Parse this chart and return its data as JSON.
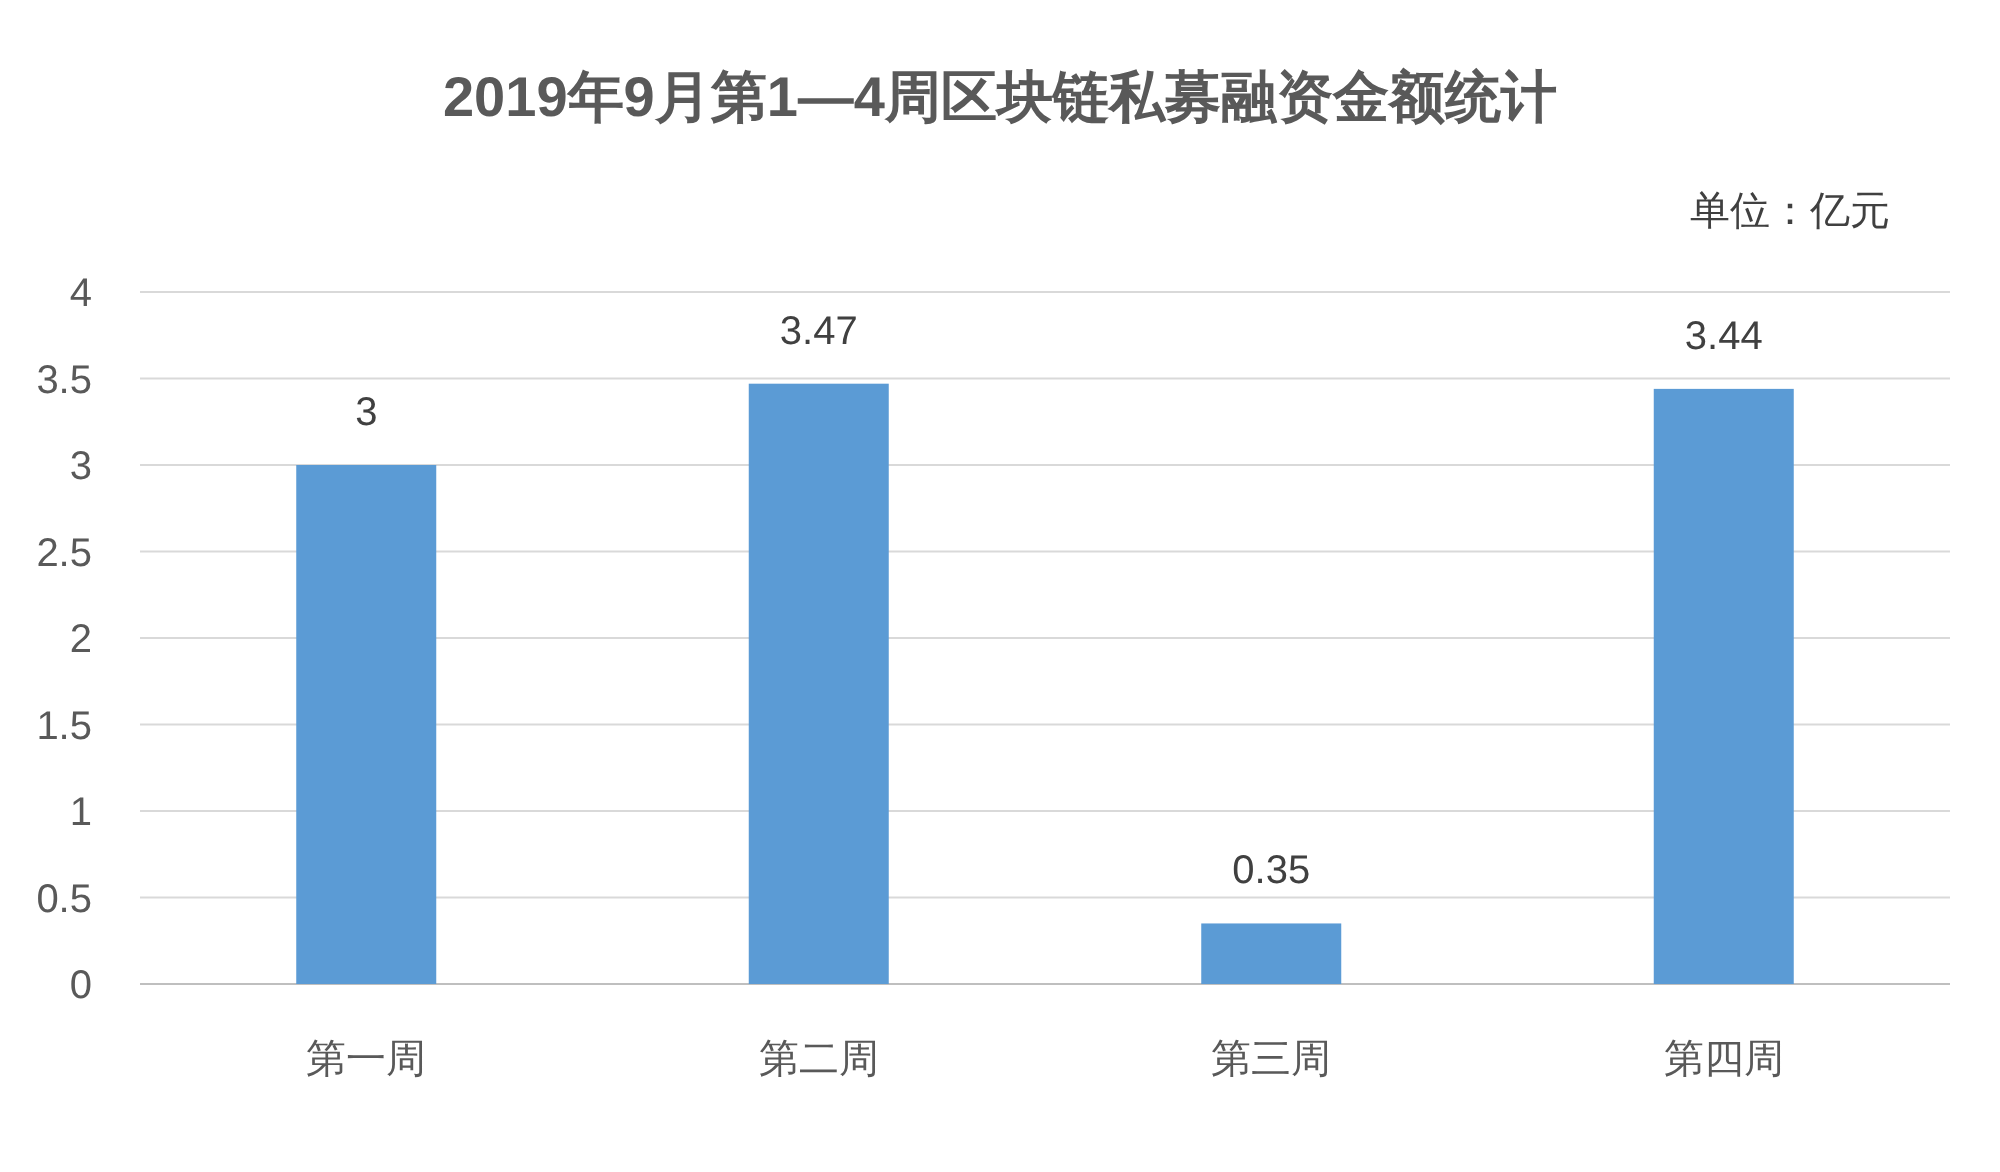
{
  "chart_data": {
    "type": "bar",
    "title": "2019年9月第1—4周区块链私募融资金额统计",
    "annotations": [
      "单位：亿元"
    ],
    "categories": [
      "第一周",
      "第二周",
      "第三周",
      "第四周"
    ],
    "values": [
      3,
      3.47,
      0.35,
      3.44
    ],
    "color": "#5b9bd5",
    "ylim": [
      0,
      4
    ],
    "yticks": [
      0,
      0.5,
      1,
      1.5,
      2,
      2.5,
      3,
      3.5,
      4
    ],
    "grid": "y",
    "data_labels": true
  }
}
